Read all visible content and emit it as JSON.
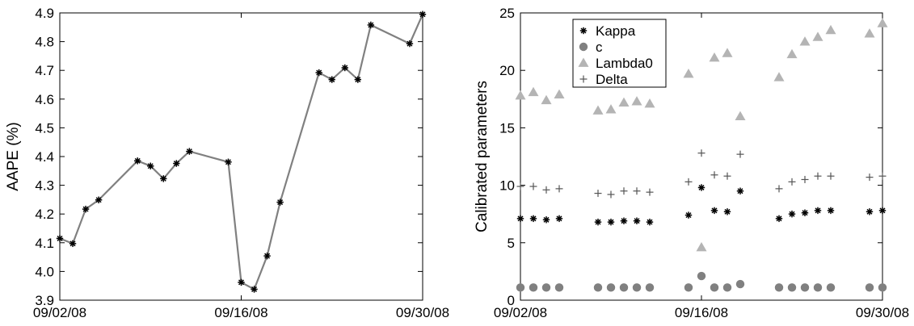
{
  "chart_data": [
    {
      "type": "line",
      "title": "",
      "xlabel": "",
      "ylabel": "AAPE (%)",
      "xlim": [
        "2008-09-02",
        "2008-09-30"
      ],
      "ylim": [
        3.9,
        4.9
      ],
      "x_ticks": [
        {
          "date": "2008-09-02",
          "label": "09/02/08"
        },
        {
          "date": "2008-09-16",
          "label": "09/16/08"
        },
        {
          "date": "2008-09-30",
          "label": "09/30/08"
        }
      ],
      "y_ticks": [
        {
          "value": 3.9,
          "label": "3.9"
        },
        {
          "value": 4.0,
          "label": "4.0"
        },
        {
          "value": 4.1,
          "label": "4.1"
        },
        {
          "value": 4.2,
          "label": "4.2"
        },
        {
          "value": 4.3,
          "label": "4.3"
        },
        {
          "value": 4.4,
          "label": "4.4"
        },
        {
          "value": 4.5,
          "label": "4.5"
        },
        {
          "value": 4.6,
          "label": "4.6"
        },
        {
          "value": 4.7,
          "label": "4.7"
        },
        {
          "value": 4.8,
          "label": "4.8"
        },
        {
          "value": 4.9,
          "label": "4.9"
        }
      ],
      "grid": false,
      "line_color": "#808080",
      "marker": "asterisk",
      "x": [
        "2008-09-02",
        "2008-09-03",
        "2008-09-04",
        "2008-09-05",
        "2008-09-08",
        "2008-09-09",
        "2008-09-10",
        "2008-09-11",
        "2008-09-12",
        "2008-09-15",
        "2008-09-16",
        "2008-09-17",
        "2008-09-18",
        "2008-09-19",
        "2008-09-22",
        "2008-09-23",
        "2008-09-24",
        "2008-09-25",
        "2008-09-26",
        "2008-09-29",
        "2008-09-30"
      ],
      "values": [
        4.115,
        4.097,
        4.217,
        4.249,
        4.385,
        4.367,
        4.323,
        4.376,
        4.418,
        4.381,
        3.962,
        3.938,
        4.054,
        4.241,
        4.692,
        4.668,
        4.709,
        4.668,
        4.858,
        4.793,
        4.895
      ]
    },
    {
      "type": "scatter",
      "title": "",
      "xlabel": "",
      "ylabel": "Calibrated parameters",
      "xlim": [
        "2008-09-02",
        "2008-09-30"
      ],
      "ylim": [
        0,
        25
      ],
      "x_ticks": [
        {
          "date": "2008-09-02",
          "label": "09/02/08"
        },
        {
          "date": "2008-09-16",
          "label": "09/16/08"
        },
        {
          "date": "2008-09-30",
          "label": "09/30/08"
        }
      ],
      "y_ticks": [
        {
          "value": 0,
          "label": "0"
        },
        {
          "value": 5,
          "label": "5"
        },
        {
          "value": 10,
          "label": "10"
        },
        {
          "value": 15,
          "label": "15"
        },
        {
          "value": 20,
          "label": "20"
        },
        {
          "value": 25,
          "label": "25"
        }
      ],
      "grid": false,
      "legend_position": "top-left",
      "x": [
        "2008-09-02",
        "2008-09-03",
        "2008-09-04",
        "2008-09-05",
        "2008-09-08",
        "2008-09-09",
        "2008-09-10",
        "2008-09-11",
        "2008-09-12",
        "2008-09-15",
        "2008-09-16",
        "2008-09-17",
        "2008-09-18",
        "2008-09-19",
        "2008-09-22",
        "2008-09-23",
        "2008-09-24",
        "2008-09-25",
        "2008-09-26",
        "2008-09-29",
        "2008-09-30"
      ],
      "series": [
        {
          "name": "Kappa",
          "marker": "asterisk",
          "color": "#000000",
          "values": [
            7.1,
            7.1,
            7.0,
            7.1,
            6.8,
            6.8,
            6.9,
            6.9,
            6.8,
            7.4,
            9.8,
            7.8,
            7.7,
            9.5,
            7.1,
            7.5,
            7.6,
            7.8,
            7.8,
            7.7,
            7.8
          ]
        },
        {
          "name": "c",
          "marker": "circle",
          "color": "#808080",
          "values": [
            1.1,
            1.1,
            1.1,
            1.1,
            1.1,
            1.1,
            1.1,
            1.1,
            1.1,
            1.1,
            2.1,
            1.1,
            1.1,
            1.4,
            1.1,
            1.1,
            1.1,
            1.1,
            1.1,
            1.1,
            1.1
          ]
        },
        {
          "name": "Lambda0",
          "marker": "triangle",
          "color": "#b4b4b4",
          "values": [
            17.8,
            18.1,
            17.4,
            17.9,
            16.5,
            16.6,
            17.2,
            17.3,
            17.1,
            19.7,
            4.6,
            21.1,
            21.5,
            16.0,
            19.4,
            21.4,
            22.5,
            22.9,
            23.5,
            23.2,
            24.1
          ]
        },
        {
          "name": "Delta",
          "marker": "plus",
          "color": "#555555",
          "values": [
            9.9,
            9.9,
            9.6,
            9.7,
            9.3,
            9.2,
            9.5,
            9.5,
            9.4,
            10.3,
            12.8,
            10.9,
            10.8,
            12.7,
            9.7,
            10.3,
            10.5,
            10.8,
            10.8,
            10.7,
            10.8
          ]
        }
      ]
    }
  ]
}
